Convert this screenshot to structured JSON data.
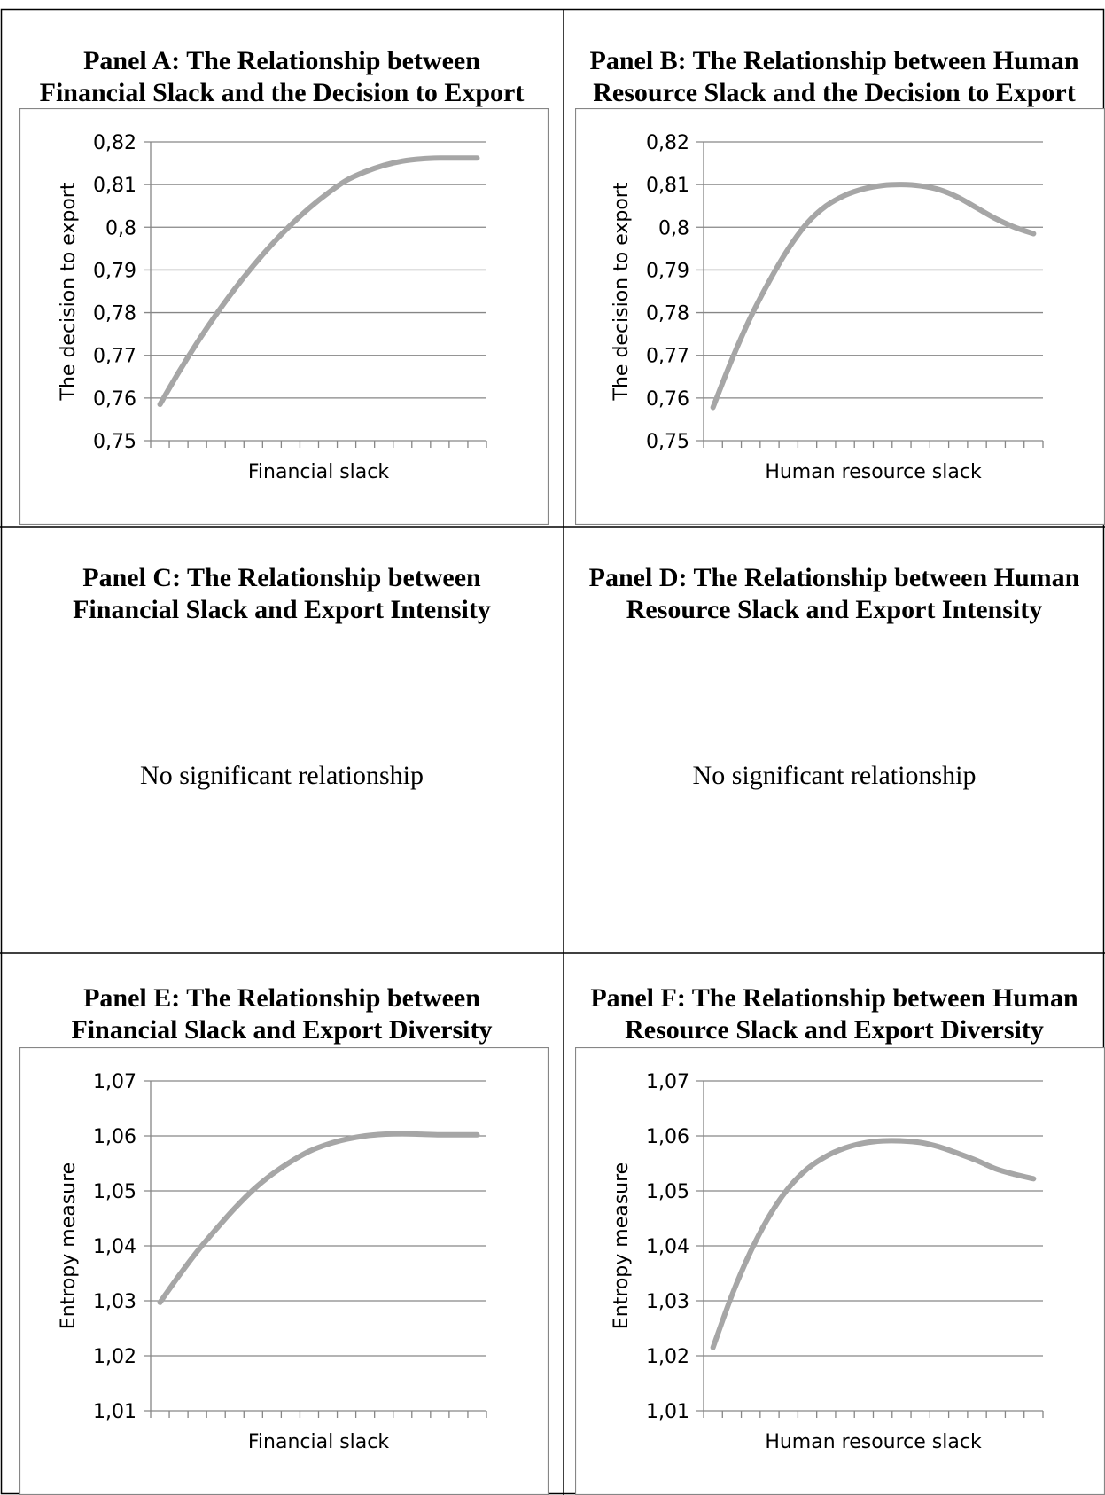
{
  "panels": [
    {
      "id": "A",
      "title_line1": "Panel A: The Relationship between",
      "title_line2": "Financial Slack and the Decision to Export"
    },
    {
      "id": "B",
      "title_line1": "Panel B: The Relationship between Human",
      "title_line2": "Resource Slack and the Decision to Export"
    },
    {
      "id": "C",
      "title_line1": "Panel C: The Relationship between",
      "title_line2": "Financial Slack and Export Intensity",
      "note": "No significant relationship"
    },
    {
      "id": "D",
      "title_line1": "Panel D: The Relationship between Human",
      "title_line2": "Resource Slack and Export Intensity",
      "note": "No significant relationship"
    },
    {
      "id": "E",
      "title_line1": "Panel E: The Relationship between",
      "title_line2": "Financial Slack and Export Diversity"
    },
    {
      "id": "F",
      "title_line1": "Panel F: The Relationship between Human",
      "title_line2": "Resource Slack and Export Diversity"
    }
  ],
  "chart_data": [
    {
      "panel": "A",
      "type": "line",
      "xlabel": "Financial slack",
      "ylabel": "The decision to export",
      "ylim": [
        0.75,
        0.82
      ],
      "yticks": [
        "0,75",
        "0,76",
        "0,77",
        "0,78",
        "0,79",
        "0,8",
        "0,81",
        "0,82"
      ],
      "x": [
        0,
        1,
        2,
        3,
        4,
        5,
        6,
        7,
        8,
        9,
        10,
        11,
        12,
        13,
        14,
        15,
        16,
        17
      ],
      "values": [
        0.7585,
        0.766,
        0.773,
        0.7795,
        0.7855,
        0.791,
        0.796,
        0.8005,
        0.8045,
        0.808,
        0.811,
        0.813,
        0.8145,
        0.8155,
        0.816,
        0.8162,
        0.8162,
        0.8162
      ],
      "grid": true,
      "legend": "none",
      "color": "#a6a6a6"
    },
    {
      "panel": "B",
      "type": "line",
      "xlabel": "Human resource slack",
      "ylabel": "The decision to export",
      "ylim": [
        0.75,
        0.82
      ],
      "yticks": [
        "0,75",
        "0,76",
        "0,77",
        "0,78",
        "0,79",
        "0,8",
        "0,81",
        "0,82"
      ],
      "x": [
        0,
        1,
        2,
        3,
        4,
        5,
        6,
        7,
        8,
        9,
        10,
        11,
        12,
        13,
        14,
        15,
        16,
        17
      ],
      "values": [
        0.7578,
        0.769,
        0.779,
        0.7875,
        0.795,
        0.801,
        0.805,
        0.8075,
        0.809,
        0.8098,
        0.81,
        0.8097,
        0.8088,
        0.807,
        0.8045,
        0.802,
        0.8,
        0.7985
      ],
      "grid": true,
      "legend": "none",
      "color": "#a6a6a6"
    },
    {
      "panel": "E",
      "type": "line",
      "xlabel": "Financial slack",
      "ylabel": "Entropy measure",
      "ylim": [
        1.01,
        1.07
      ],
      "yticks": [
        "1,01",
        "1,02",
        "1,03",
        "1,04",
        "1,05",
        "1,06",
        "1,07"
      ],
      "x": [
        0,
        1,
        2,
        3,
        4,
        5,
        6,
        7,
        8,
        9,
        10,
        11,
        12,
        13,
        14,
        15,
        16,
        17
      ],
      "values": [
        1.0297,
        1.0345,
        1.039,
        1.043,
        1.0468,
        1.0502,
        1.053,
        1.0553,
        1.0572,
        1.0585,
        1.0594,
        1.06,
        1.0603,
        1.0604,
        1.0603,
        1.0602,
        1.0602,
        1.0602
      ],
      "grid": true,
      "legend": "none",
      "color": "#a6a6a6"
    },
    {
      "panel": "F",
      "type": "line",
      "xlabel": "Human resource slack",
      "ylabel": "Entropy measure",
      "ylim": [
        1.01,
        1.07
      ],
      "yticks": [
        "1,01",
        "1,02",
        "1,03",
        "1,04",
        "1,05",
        "1,06",
        "1,07"
      ],
      "x": [
        0,
        1,
        2,
        3,
        4,
        5,
        6,
        7,
        8,
        9,
        10,
        11,
        12,
        13,
        14,
        15,
        16,
        17
      ],
      "values": [
        1.0215,
        1.031,
        1.039,
        1.0455,
        1.0505,
        1.054,
        1.0563,
        1.0578,
        1.0587,
        1.0591,
        1.0591,
        1.0588,
        1.058,
        1.0568,
        1.0555,
        1.054,
        1.053,
        1.0522
      ],
      "grid": true,
      "legend": "none",
      "color": "#a6a6a6"
    }
  ]
}
